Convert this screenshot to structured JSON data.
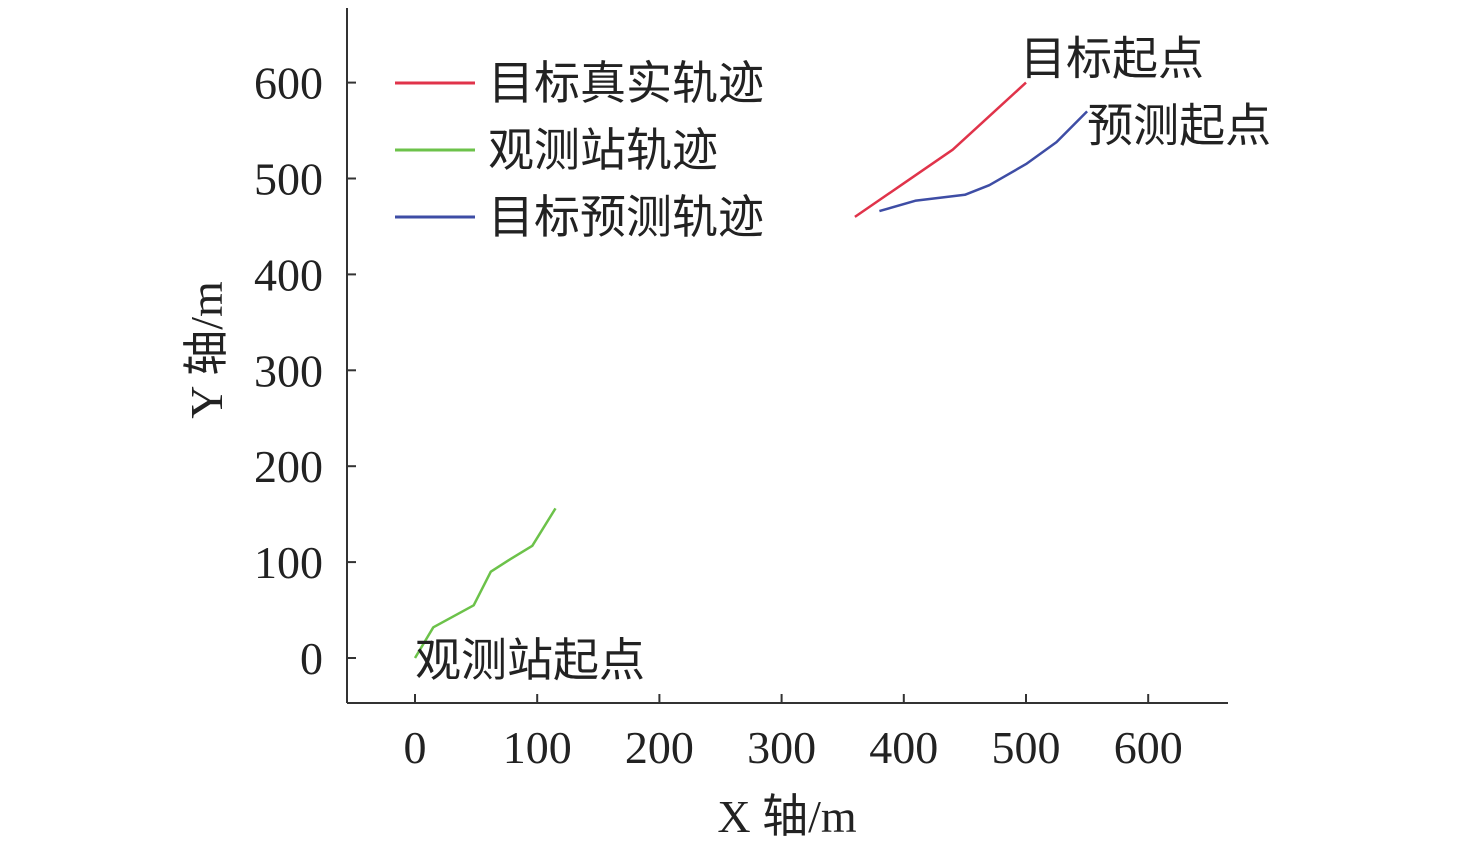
{
  "chart_data": {
    "type": "line",
    "xlabel": "X 轴/m",
    "ylabel": "Y 轴/m",
    "xlim": [
      -57,
      665
    ],
    "ylim": [
      -47,
      680
    ],
    "x_ticks": [
      0,
      100,
      200,
      300,
      400,
      500,
      600
    ],
    "y_ticks": [
      0,
      100,
      200,
      300,
      400,
      500,
      600
    ],
    "grid": false,
    "legend_position": "top-left",
    "series": [
      {
        "name": "目标真实轨迹",
        "color": "#e0334a",
        "points": [
          [
            360,
            460
          ],
          [
            400,
            495
          ],
          [
            440,
            530
          ],
          [
            470,
            565
          ],
          [
            500,
            600
          ]
        ]
      },
      {
        "name": "观测站轨迹",
        "color": "#6cc24a",
        "points": [
          [
            0,
            0
          ],
          [
            15,
            32
          ],
          [
            48,
            55
          ],
          [
            62,
            90
          ],
          [
            78,
            103
          ],
          [
            96,
            117
          ],
          [
            115,
            156
          ]
        ]
      },
      {
        "name": "目标预测轨迹",
        "color": "#3e4da5",
        "points": [
          [
            380,
            466
          ],
          [
            410,
            477
          ],
          [
            450,
            483
          ],
          [
            470,
            493
          ],
          [
            500,
            515
          ],
          [
            525,
            538
          ],
          [
            550,
            570
          ]
        ]
      }
    ],
    "annotations": [
      {
        "text": "目标起点",
        "x": 500,
        "y": 600
      },
      {
        "text": "预测起点",
        "x": 550,
        "y": 570
      },
      {
        "text": "观测站起点",
        "x": 0,
        "y": 0
      }
    ]
  }
}
